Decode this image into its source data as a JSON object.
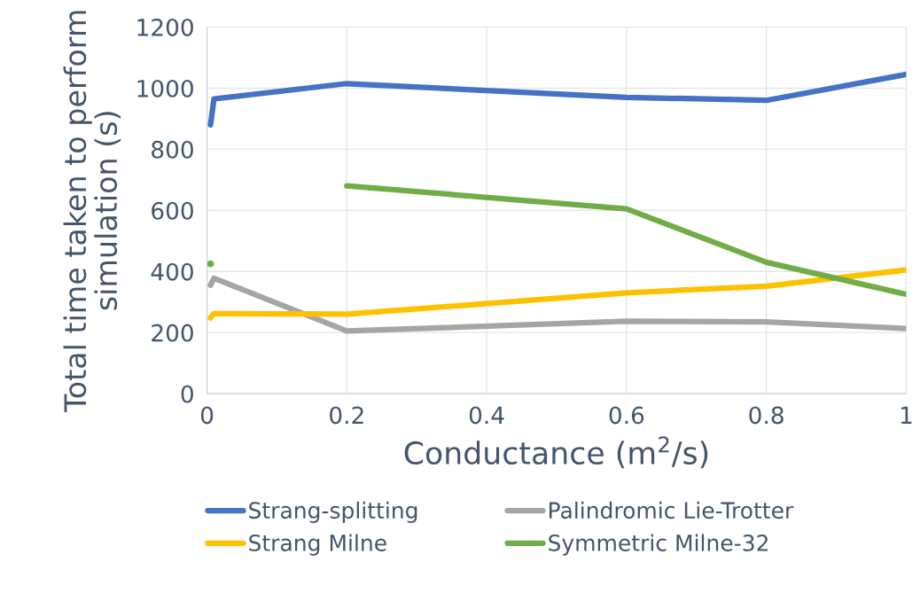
{
  "chart_data": {
    "type": "line",
    "xlabel": "Conductance (m$^{2}$/s)",
    "ylabel": "Total time taken to perform simulation (s)",
    "x": [
      0.005,
      0.01,
      0.2,
      0.6,
      0.8,
      1
    ],
    "series": [
      {
        "name": "Strang-splitting",
        "color": "#4472c4",
        "values": [
          880,
          965,
          1015,
          970,
          960,
          1045
        ]
      },
      {
        "name": "Palindromic Lie-Trotter",
        "color": "#a5a5a5",
        "values": [
          355,
          378,
          205,
          237,
          235,
          213
        ]
      },
      {
        "name": "Strang Milne",
        "color": "#ffc000",
        "values": [
          248,
          262,
          260,
          330,
          352,
          405
        ]
      },
      {
        "name": "Symmetric Milne-32",
        "color": "#70ad47",
        "values": [
          425,
          null,
          680,
          605,
          430,
          325
        ]
      }
    ],
    "xlim": [
      0,
      1
    ],
    "xticks": [
      {
        "value": 0,
        "label": "0"
      },
      0.2,
      0.4,
      0.6,
      0.8,
      {
        "value": 1,
        "label": "1"
      }
    ],
    "ylim": [
      0,
      1200
    ],
    "yticks": [
      0,
      200,
      400,
      600,
      800,
      1000,
      1200
    ],
    "grid": true,
    "legend": "bottom",
    "marker": "none",
    "line_style": "solid"
  }
}
